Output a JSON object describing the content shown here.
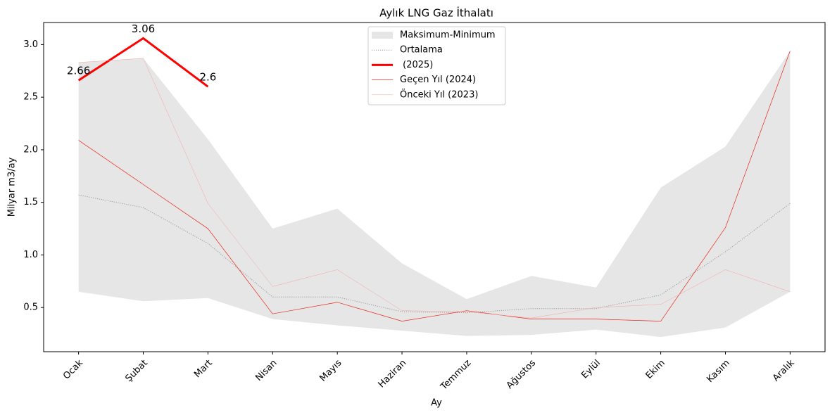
{
  "chart_data": {
    "type": "line",
    "title": "Aylık LNG Gaz İthalatı",
    "xlabel": "Ay",
    "ylabel": "Milyar m3/ay",
    "categories": [
      "Ocak",
      "Şubat",
      "Mart",
      "Nisan",
      "Mayıs",
      "Haziran",
      "Temmuz",
      "Ağustos",
      "Eylül",
      "Ekim",
      "Kasım",
      "Aralık"
    ],
    "band": {
      "name": "Maksimum-Minimum",
      "color": "#e6e6e6",
      "upper": [
        2.83,
        2.87,
        2.1,
        1.25,
        1.44,
        0.92,
        0.58,
        0.8,
        0.69,
        1.64,
        2.03,
        2.94
      ],
      "lower": [
        0.65,
        0.56,
        0.59,
        0.39,
        0.33,
        0.28,
        0.23,
        0.24,
        0.29,
        0.22,
        0.31,
        0.65
      ]
    },
    "series": [
      {
        "name": "Ortalama",
        "color": "#999999",
        "linestyle": "dotted",
        "linewidth": 1,
        "values": [
          1.57,
          1.45,
          1.11,
          0.6,
          0.6,
          0.46,
          0.45,
          0.49,
          0.49,
          0.62,
          1.03,
          1.49
        ]
      },
      {
        "name": " (2025)",
        "color": "#ff0000",
        "linestyle": "solid",
        "linewidth": 3,
        "data_labels": true,
        "values": [
          2.66,
          3.06,
          2.6,
          null,
          null,
          null,
          null,
          null,
          null,
          null,
          null,
          null
        ]
      },
      {
        "name": "Geçen Yıl (2024)",
        "color": "#e8251a",
        "linestyle": "solid",
        "linewidth": 0.7,
        "values": [
          2.09,
          1.67,
          1.25,
          0.44,
          0.55,
          0.37,
          0.47,
          0.39,
          0.39,
          0.37,
          1.26,
          2.94
        ]
      },
      {
        "name": "Önceki Yıl (2023)",
        "color": "#f4a3a3",
        "linestyle": "solid",
        "linewidth": 0.5,
        "values": [
          2.83,
          2.87,
          1.49,
          0.7,
          0.86,
          0.47,
          0.46,
          0.4,
          0.5,
          0.53,
          0.86,
          0.65
        ]
      }
    ],
    "ylim": [
      0.08,
      3.21
    ],
    "yticks": [
      {
        "value": 0.5,
        "label": "0.5"
      },
      {
        "value": 1.0,
        "label": "1.0"
      },
      {
        "value": 1.5,
        "label": "1.5"
      },
      {
        "value": 2.0,
        "label": "2.0"
      },
      {
        "value": 2.5,
        "label": "2.5"
      },
      {
        "value": 3.0,
        "label": "3.0"
      }
    ],
    "legend": "upper center"
  }
}
